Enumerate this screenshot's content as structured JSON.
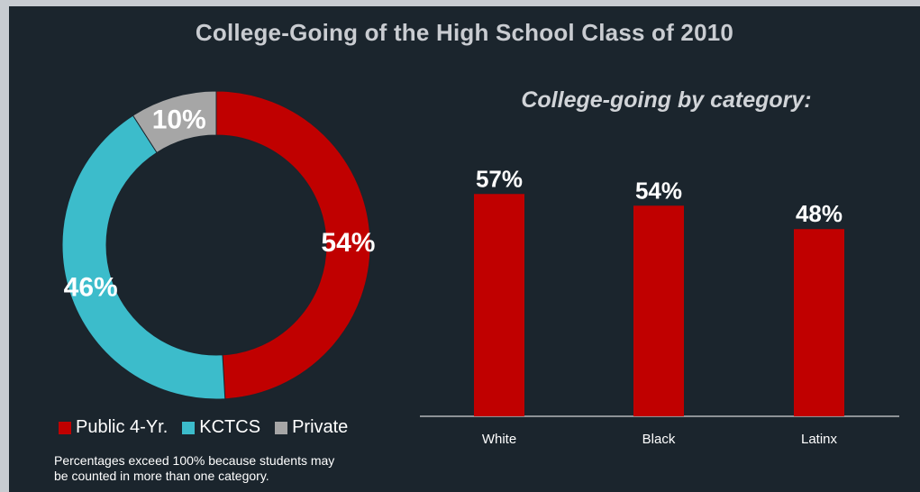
{
  "title": "College-Going of the High School Class of 2010",
  "subtitle": "College-going by category:",
  "note": "Percentages exceed 100% because students may be counted in more than one category.",
  "colors": {
    "public": "#c00000",
    "kctcs": "#3cbccb",
    "private": "#a6a6a6",
    "bar": "#c00000"
  },
  "chart_data": [
    {
      "type": "pie",
      "categories": [
        "Public 4-Yr.",
        "KCTCS",
        "Private"
      ],
      "values": [
        54,
        46,
        10
      ],
      "labels": [
        "54%",
        "46%",
        "10%"
      ],
      "legend": "bottom"
    },
    {
      "type": "bar",
      "categories": [
        "White",
        "Black",
        "Latinx"
      ],
      "values": [
        57,
        54,
        48
      ],
      "labels": [
        "57%",
        "54%",
        "48%"
      ]
    }
  ]
}
